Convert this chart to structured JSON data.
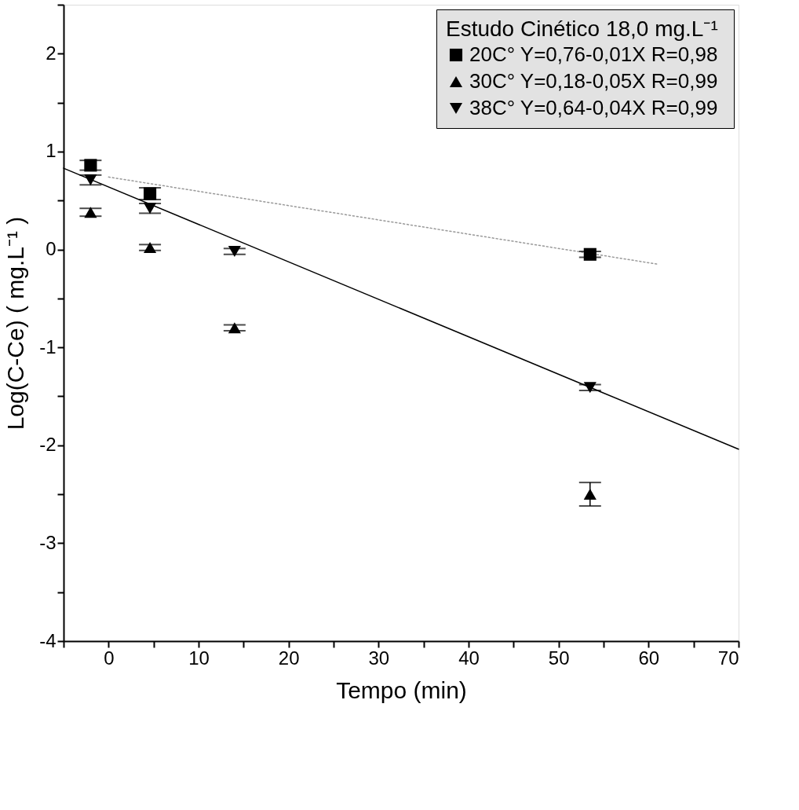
{
  "chart_data": {
    "type": "scatter",
    "xlabel": "Tempo (min)",
    "ylabel": "Log(C-Ce) ( mg.L⁻¹ )",
    "legend_title": "Estudo Cinético  18,0 mg.L⁻¹",
    "x": [
      -2,
      4.6,
      14,
      53.5
    ],
    "series": [
      {
        "name": "20C° Y=0,76-0,01X  R=0,98",
        "color": "#000000",
        "marker": "square",
        "x": [
          -2,
          4.6,
          53.5
        ],
        "values": [
          0.86,
          0.57,
          -0.05
        ],
        "errors": [
          0.05,
          0.06,
          0.03
        ]
      },
      {
        "name": "30C° Y=0,18-0,05X  R=0,99",
        "color": "#000000",
        "marker": "triangle",
        "values": [
          0.38,
          0.02,
          -0.8,
          -2.5
        ],
        "errors": [
          0.04,
          0.03,
          0.03,
          0.12
        ]
      },
      {
        "name": "38C° Y=0,64-0,04X  R=0,99",
        "color": "#000000",
        "marker": "triangle-down",
        "values": [
          0.71,
          0.42,
          -0.02,
          -1.41
        ],
        "errors": [
          0.05,
          0.05,
          0.03,
          0.03
        ]
      },
      {
        "type": "line",
        "color": "#999999",
        "line_style": "dotted",
        "x": [
          0,
          61
        ],
        "values": [
          0.74,
          -0.15
        ]
      },
      {
        "type": "line",
        "color": "#000000",
        "line_style": "solid",
        "x": [
          -5,
          70
        ],
        "values": [
          0.83,
          -2.04
        ]
      }
    ],
    "xlim": [
      -5,
      70
    ],
    "xticks": [
      {
        "value": -5,
        "label": null
      },
      0,
      {
        "value": 5,
        "label": null
      },
      10,
      {
        "value": 15,
        "label": null
      },
      20,
      {
        "value": 25,
        "label": null
      },
      30,
      {
        "value": 35,
        "label": null
      },
      40,
      {
        "value": 45,
        "label": null
      },
      50,
      {
        "value": 55,
        "label": null
      },
      60,
      {
        "value": 65,
        "label": null
      },
      70
    ],
    "ylim": [
      -4,
      2.5
    ],
    "yticks": [
      -4,
      {
        "value": -3.5,
        "label": null
      },
      -3,
      {
        "value": -2.5,
        "label": null
      },
      -2,
      {
        "value": -1.5,
        "label": null
      },
      -1,
      {
        "value": -0.5,
        "label": null
      },
      0,
      {
        "value": 0.5,
        "label": null
      },
      1,
      {
        "value": 1.5,
        "label": null
      },
      2,
      {
        "value": 2.5,
        "label": null
      }
    ],
    "grid": false,
    "legend": "top right"
  }
}
